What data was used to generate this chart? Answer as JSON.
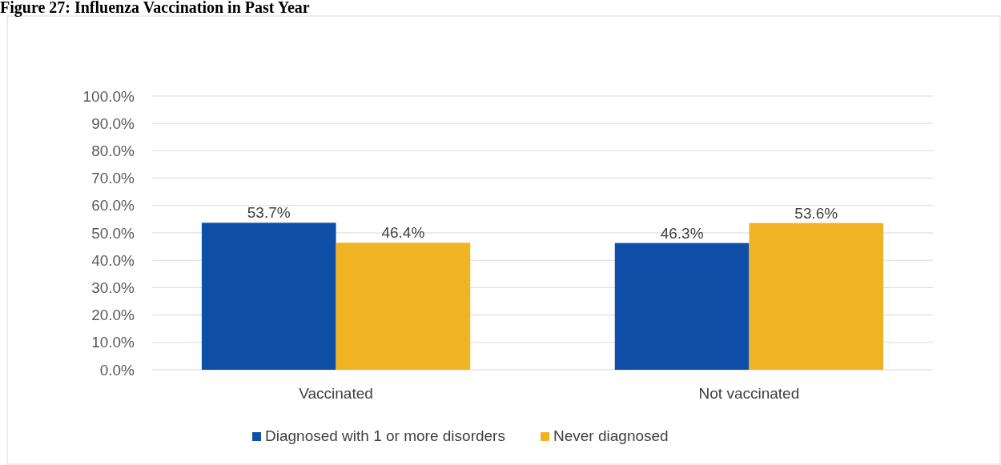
{
  "chart_data": {
    "type": "bar",
    "title": "Figure 27: Influenza Vaccination in Past Year",
    "categories": [
      "Vaccinated",
      "Not vaccinated"
    ],
    "series": [
      {
        "name": "Diagnosed with 1 or more disorders",
        "color": "#0f4fa8",
        "values": [
          53.7,
          46.3
        ]
      },
      {
        "name": "Never diagnosed",
        "color": "#f0b323",
        "values": [
          46.4,
          53.6
        ]
      }
    ],
    "ylim": [
      0,
      100
    ],
    "yticks": [
      {
        "value": 0,
        "label": "0.0%"
      },
      {
        "value": 10,
        "label": "10.0%"
      },
      {
        "value": 20,
        "label": "20.0%"
      },
      {
        "value": 30,
        "label": "30.0%"
      },
      {
        "value": 40,
        "label": "40.0%"
      },
      {
        "value": 50,
        "label": "50.0%"
      },
      {
        "value": 60,
        "label": "60.0%"
      },
      {
        "value": 70,
        "label": "70.0%"
      },
      {
        "value": 80,
        "label": "80.0%"
      },
      {
        "value": 90,
        "label": "90.0%"
      },
      {
        "value": 100,
        "label": "100.0%"
      }
    ],
    "value_labels": [
      [
        "53.7%",
        "46.3%"
      ],
      [
        "46.4%",
        "53.6%"
      ]
    ],
    "grid": "y",
    "legend": "bottom"
  }
}
